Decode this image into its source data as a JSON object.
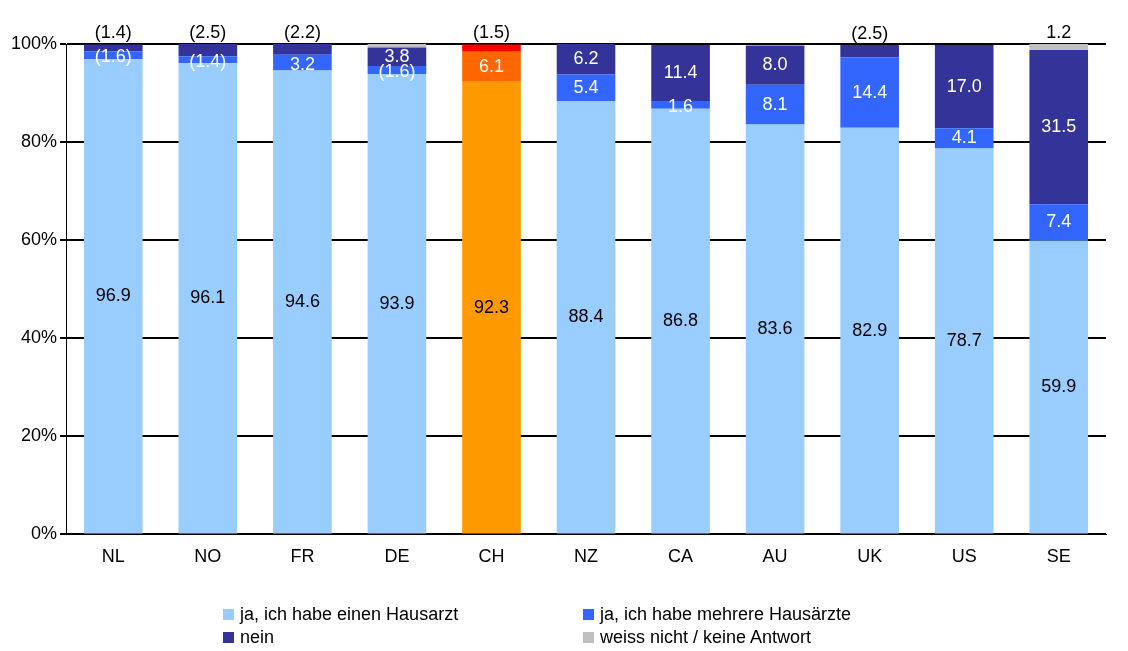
{
  "chart_data": {
    "type": "bar",
    "stacked": true,
    "categories": [
      "NL",
      "NO",
      "FR",
      "DE",
      "CH",
      "NZ",
      "CA",
      "AU",
      "UK",
      "US",
      "SE"
    ],
    "series": [
      {
        "name": "ja, ich habe einen Hausarzt",
        "color": "#99ccff",
        "colors": [
          "#99ccff",
          "#99ccff",
          "#99ccff",
          "#99ccff",
          "#ff9900",
          "#99ccff",
          "#99ccff",
          "#99ccff",
          "#99ccff",
          "#99ccff",
          "#99ccff"
        ],
        "values": [
          96.9,
          96.1,
          94.6,
          93.9,
          92.3,
          88.4,
          86.8,
          83.6,
          82.9,
          78.7,
          59.9
        ],
        "value_labels": [
          "96.9",
          "96.1",
          "94.6",
          "93.9",
          "92.3",
          "88.4",
          "86.8",
          "83.6",
          "82.9",
          "78.7",
          "59.9"
        ]
      },
      {
        "name": "ja, ich habe mehrere Hausärzte",
        "color": "#3366ff",
        "colors": [
          "#3366ff",
          "#3366ff",
          "#3366ff",
          "#3366ff",
          "#ff6600",
          "#3366ff",
          "#3366ff",
          "#3366ff",
          "#3366ff",
          "#3366ff",
          "#3366ff"
        ],
        "values": [
          1.6,
          1.4,
          3.2,
          1.6,
          6.1,
          5.4,
          1.6,
          8.1,
          14.4,
          4.1,
          7.4
        ],
        "value_labels": [
          "(1.6)",
          "(1.4)",
          "3.2",
          "(1.6)",
          "6.1",
          "5.4",
          "1.6",
          "8.1",
          "14.4",
          "4.1",
          "7.4"
        ]
      },
      {
        "name": "nein",
        "color": "#333399",
        "colors": [
          "#333399",
          "#333399",
          "#333399",
          "#333399",
          "#ff0000",
          "#333399",
          "#333399",
          "#333399",
          "#333399",
          "#333399",
          "#333399"
        ],
        "values": [
          1.4,
          2.5,
          2.2,
          3.8,
          1.5,
          6.2,
          11.4,
          8.0,
          2.5,
          17.0,
          31.5
        ],
        "value_labels": [
          "(1.4)",
          "(2.5)",
          "(2.2)",
          "3.8",
          "(1.5)",
          "6.2",
          "11.4",
          "8.0",
          "(2.5)",
          "17.0",
          "31.5"
        ]
      },
      {
        "name": "weiss nicht / keine Antwort",
        "color": "#c0c0c0",
        "values": [
          null,
          null,
          null,
          0.7,
          null,
          null,
          null,
          null,
          null,
          null,
          1.2
        ],
        "value_labels": [
          null,
          null,
          null,
          null,
          null,
          null,
          null,
          null,
          null,
          null,
          "1.2"
        ]
      }
    ],
    "ylim": [
      0,
      100
    ],
    "yticks": [
      {
        "value": 0,
        "label": "0%"
      },
      {
        "value": 20,
        "label": "20%"
      },
      {
        "value": 40,
        "label": "40%"
      },
      {
        "value": 60,
        "label": "60%"
      },
      {
        "value": 80,
        "label": "80%"
      },
      {
        "value": 100,
        "label": "100%"
      }
    ],
    "grid": "y",
    "legend": "bottom"
  }
}
